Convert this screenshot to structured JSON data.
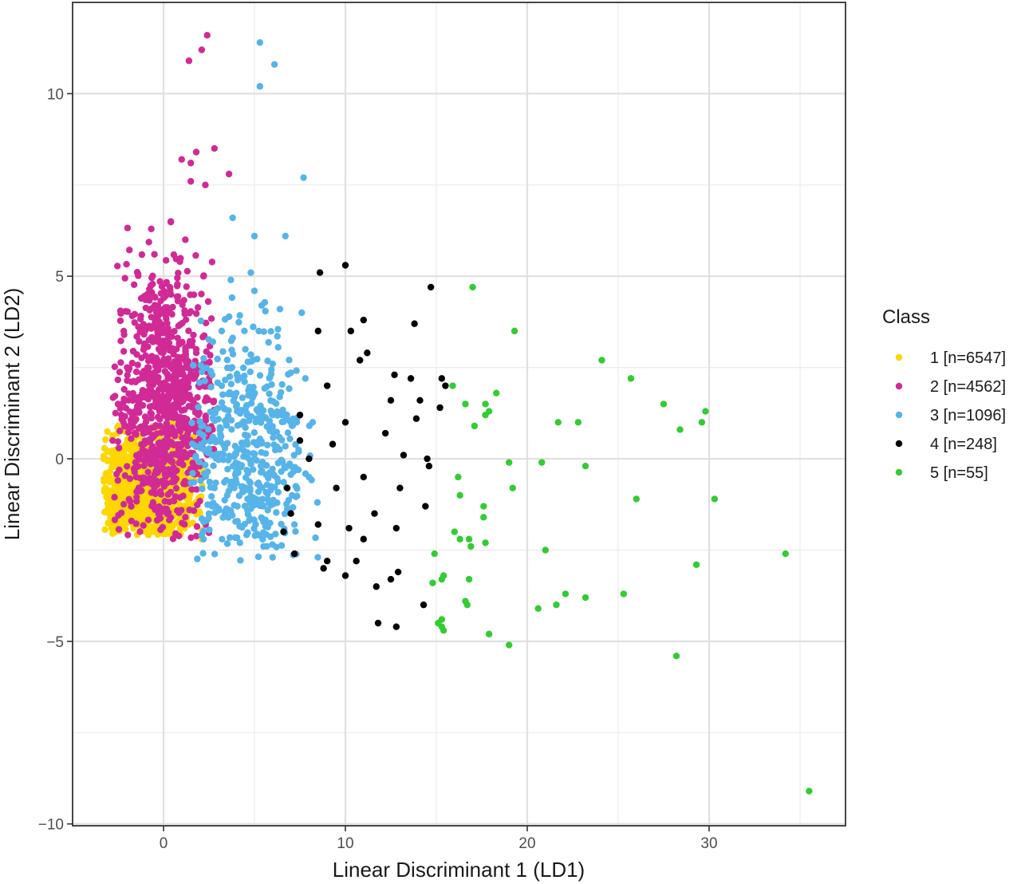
{
  "chart_data": {
    "type": "scatter",
    "title": "",
    "xlabel": "Linear Discriminant 1 (LD1)",
    "ylabel": "Linear Discriminant 2 (LD2)",
    "xlim": [
      -5,
      37.5
    ],
    "ylim": [
      -10.05,
      12.5
    ],
    "x_ticks": [
      0,
      10,
      20,
      30
    ],
    "x_tick_labels": [
      "0",
      "10",
      "20",
      "30"
    ],
    "y_ticks": [
      -10,
      -5,
      0,
      5,
      10
    ],
    "y_tick_labels": [
      "−10",
      "−5",
      "0",
      "5",
      "10"
    ],
    "grid": true,
    "legend": {
      "title": "Class",
      "position": "right",
      "entries": [
        "1 [n=6547]",
        "2 [n=4562]",
        "3 [n=1096]",
        "4 [n=248]",
        "5 [n=55]"
      ]
    },
    "series": [
      {
        "name": "1 [n=6547]",
        "color": "#FFD700",
        "n": 6547,
        "cluster": {
          "x_range": [
            -3.3,
            2.2
          ],
          "y_range": [
            -2.1,
            1.0
          ],
          "center": [
            -1.0,
            -0.8
          ]
        },
        "points": [
          [
            -3.2,
            -0.8
          ],
          [
            -2.8,
            0.6
          ],
          [
            -2.5,
            0.9
          ],
          [
            -2.0,
            -1.5
          ],
          [
            -1.5,
            -1.8
          ],
          [
            -1.0,
            -2.0
          ],
          [
            0.0,
            -1.9
          ],
          [
            0.8,
            -1.7
          ],
          [
            1.4,
            -1.8
          ],
          [
            2.0,
            -1.5
          ],
          [
            -0.3,
            0.5
          ],
          [
            0.5,
            -0.5
          ],
          [
            1.2,
            -1.0
          ],
          [
            -2.2,
            -0.2
          ],
          [
            -1.8,
            0.3
          ],
          [
            1.8,
            -1.2
          ],
          [
            -0.6,
            -0.4
          ],
          [
            0.2,
            -1.1
          ],
          [
            2.1,
            -2.2
          ],
          [
            -1.2,
            -1.2
          ]
        ]
      },
      {
        "name": "2 [n=4562]",
        "color": "#D12A96",
        "n": 4562,
        "cluster": {
          "x_range": [
            -2.8,
            2.8
          ],
          "y_range": [
            -2.2,
            6.5
          ],
          "center": [
            0.0,
            1.5
          ]
        },
        "points": [
          [
            1.4,
            10.9
          ],
          [
            2.1,
            11.2
          ],
          [
            2.4,
            11.6
          ],
          [
            1.8,
            8.4
          ],
          [
            2.8,
            8.5
          ],
          [
            1.0,
            8.2
          ],
          [
            1.5,
            8.1
          ],
          [
            3.6,
            7.8
          ],
          [
            1.5,
            7.6
          ],
          [
            2.3,
            7.5
          ],
          [
            0.4,
            6.5
          ],
          [
            1.2,
            6.0
          ],
          [
            -0.5,
            5.6
          ],
          [
            0.9,
            5.4
          ],
          [
            2.2,
            5.0
          ],
          [
            -0.9,
            4.5
          ],
          [
            0.2,
            4.0
          ],
          [
            -1.2,
            3.5
          ],
          [
            1.8,
            3.0
          ],
          [
            -2.0,
            2.5
          ],
          [
            -2.5,
            1.5
          ],
          [
            2.6,
            2.0
          ],
          [
            -2.8,
            0.5
          ],
          [
            2.7,
            0.8
          ],
          [
            -1.5,
            -0.5
          ],
          [
            1.2,
            -1.6
          ],
          [
            -0.4,
            -0.6
          ],
          [
            2.0,
            -0.2
          ],
          [
            -2.2,
            1.0
          ],
          [
            0.6,
            2.5
          ]
        ]
      },
      {
        "name": "3 [n=1096]",
        "color": "#56B4E9",
        "n": 1096,
        "cluster": {
          "x_range": [
            1.5,
            8.5
          ],
          "y_range": [
            -2.8,
            4.9
          ],
          "center": [
            4.5,
            0.2
          ]
        },
        "points": [
          [
            5.3,
            11.4
          ],
          [
            6.1,
            10.8
          ],
          [
            5.3,
            10.2
          ],
          [
            7.7,
            7.7
          ],
          [
            3.8,
            6.6
          ],
          [
            5.0,
            6.1
          ],
          [
            6.7,
            6.1
          ],
          [
            3.7,
            4.9
          ],
          [
            4.8,
            5.1
          ],
          [
            5.0,
            4.6
          ],
          [
            5.4,
            4.2
          ],
          [
            6.4,
            4.1
          ],
          [
            7.6,
            4.0
          ],
          [
            3.2,
            3.5
          ],
          [
            4.5,
            3.0
          ],
          [
            6.0,
            2.6
          ],
          [
            7.8,
            2.2
          ],
          [
            2.6,
            2.4
          ],
          [
            8.2,
            1.0
          ],
          [
            3.0,
            0.5
          ],
          [
            8.0,
            -0.5
          ],
          [
            2.5,
            -1.5
          ],
          [
            7.2,
            -1.8
          ],
          [
            5.5,
            -2.4
          ],
          [
            6.0,
            -2.7
          ],
          [
            2.2,
            -2.2
          ],
          [
            4.2,
            -2.3
          ],
          [
            3.5,
            -1.0
          ],
          [
            5.0,
            0.0
          ],
          [
            6.5,
            1.2
          ],
          [
            4.0,
            1.8
          ],
          [
            7.0,
            -0.2
          ],
          [
            2.8,
            -0.8
          ],
          [
            5.8,
            -1.2
          ],
          [
            3.2,
            2.0
          ]
        ]
      },
      {
        "name": "4 [n=248]",
        "color": "#000000",
        "n": 248,
        "cluster": {
          "x_range": [
            6.3,
            15.3
          ],
          "y_range": [
            -4.6,
            5.3
          ],
          "center": [
            9.5,
            -0.5
          ]
        },
        "points": [
          [
            10.0,
            5.3
          ],
          [
            8.6,
            5.1
          ],
          [
            14.7,
            4.7
          ],
          [
            11.0,
            3.8
          ],
          [
            8.5,
            3.5
          ],
          [
            10.3,
            3.5
          ],
          [
            13.8,
            3.7
          ],
          [
            11.2,
            2.9
          ],
          [
            10.8,
            2.7
          ],
          [
            12.7,
            2.3
          ],
          [
            15.3,
            2.2
          ],
          [
            15.5,
            2.0
          ],
          [
            9.0,
            2.0
          ],
          [
            13.6,
            2.2
          ],
          [
            13.9,
            1.1
          ],
          [
            15.2,
            1.4
          ],
          [
            12.5,
            1.6
          ],
          [
            7.5,
            1.2
          ],
          [
            10.0,
            1.0
          ],
          [
            14.1,
            1.6
          ],
          [
            7.5,
            0.5
          ],
          [
            9.3,
            0.4
          ],
          [
            12.2,
            0.7
          ],
          [
            14.5,
            0.0
          ],
          [
            14.6,
            -0.2
          ],
          [
            6.8,
            -0.8
          ],
          [
            11.0,
            -0.5
          ],
          [
            13.2,
            0.1
          ],
          [
            14.4,
            -1.3
          ],
          [
            7.0,
            -1.5
          ],
          [
            8.5,
            -1.8
          ],
          [
            10.2,
            -1.9
          ],
          [
            11.6,
            -1.5
          ],
          [
            12.8,
            -1.9
          ],
          [
            7.2,
            -2.6
          ],
          [
            9.0,
            -2.8
          ],
          [
            10.6,
            -2.8
          ],
          [
            12.5,
            -3.3
          ],
          [
            11.7,
            -3.5
          ],
          [
            12.9,
            -3.1
          ],
          [
            14.3,
            -4.0
          ],
          [
            11.8,
            -4.5
          ],
          [
            12.8,
            -4.6
          ],
          [
            8.8,
            -3.0
          ],
          [
            10.0,
            -3.2
          ],
          [
            11.0,
            -2.2
          ],
          [
            6.6,
            -2.0
          ],
          [
            9.5,
            -0.8
          ],
          [
            13.0,
            -0.8
          ],
          [
            8.0,
            0.0
          ]
        ]
      },
      {
        "name": "5 [n=55]",
        "color": "#33CC33",
        "n": 55,
        "cluster": {
          "x_range": [
            14.8,
            35.5
          ],
          "y_range": [
            -9.1,
            4.7
          ],
          "center": [
            21.0,
            -1.0
          ]
        },
        "points": [
          [
            17.0,
            4.7
          ],
          [
            19.3,
            3.5
          ],
          [
            24.1,
            2.7
          ],
          [
            25.7,
            2.2
          ],
          [
            27.5,
            1.5
          ],
          [
            29.8,
            1.3
          ],
          [
            29.6,
            1.0
          ],
          [
            28.4,
            0.8
          ],
          [
            21.7,
            1.0
          ],
          [
            22.8,
            1.0
          ],
          [
            18.3,
            1.8
          ],
          [
            17.7,
            1.5
          ],
          [
            17.9,
            1.3
          ],
          [
            17.7,
            1.2
          ],
          [
            16.6,
            1.5
          ],
          [
            17.1,
            0.9
          ],
          [
            15.9,
            2.0
          ],
          [
            19.0,
            -0.1
          ],
          [
            20.8,
            -0.1
          ],
          [
            23.2,
            -0.2
          ],
          [
            16.2,
            -0.5
          ],
          [
            19.2,
            -0.8
          ],
          [
            16.3,
            -1.0
          ],
          [
            26.0,
            -1.1
          ],
          [
            30.3,
            -1.1
          ],
          [
            17.6,
            -1.3
          ],
          [
            17.6,
            -1.6
          ],
          [
            16.0,
            -2.0
          ],
          [
            16.3,
            -2.2
          ],
          [
            16.8,
            -2.2
          ],
          [
            17.7,
            -2.3
          ],
          [
            21.0,
            -2.5
          ],
          [
            14.9,
            -2.6
          ],
          [
            34.2,
            -2.6
          ],
          [
            29.3,
            -2.9
          ],
          [
            15.4,
            -3.2
          ],
          [
            15.3,
            -3.3
          ],
          [
            14.8,
            -3.4
          ],
          [
            16.8,
            -3.3
          ],
          [
            22.1,
            -3.7
          ],
          [
            25.3,
            -3.7
          ],
          [
            23.2,
            -3.8
          ],
          [
            16.6,
            -3.9
          ],
          [
            16.7,
            -4.0
          ],
          [
            21.6,
            -4.0
          ],
          [
            20.6,
            -4.1
          ],
          [
            15.3,
            -4.4
          ],
          [
            15.3,
            -4.6
          ],
          [
            15.4,
            -4.7
          ],
          [
            17.9,
            -4.8
          ],
          [
            19.0,
            -5.1
          ],
          [
            28.2,
            -5.4
          ],
          [
            35.5,
            -9.1
          ],
          [
            15.1,
            -4.5
          ],
          [
            16.9,
            -2.4
          ]
        ]
      }
    ]
  }
}
